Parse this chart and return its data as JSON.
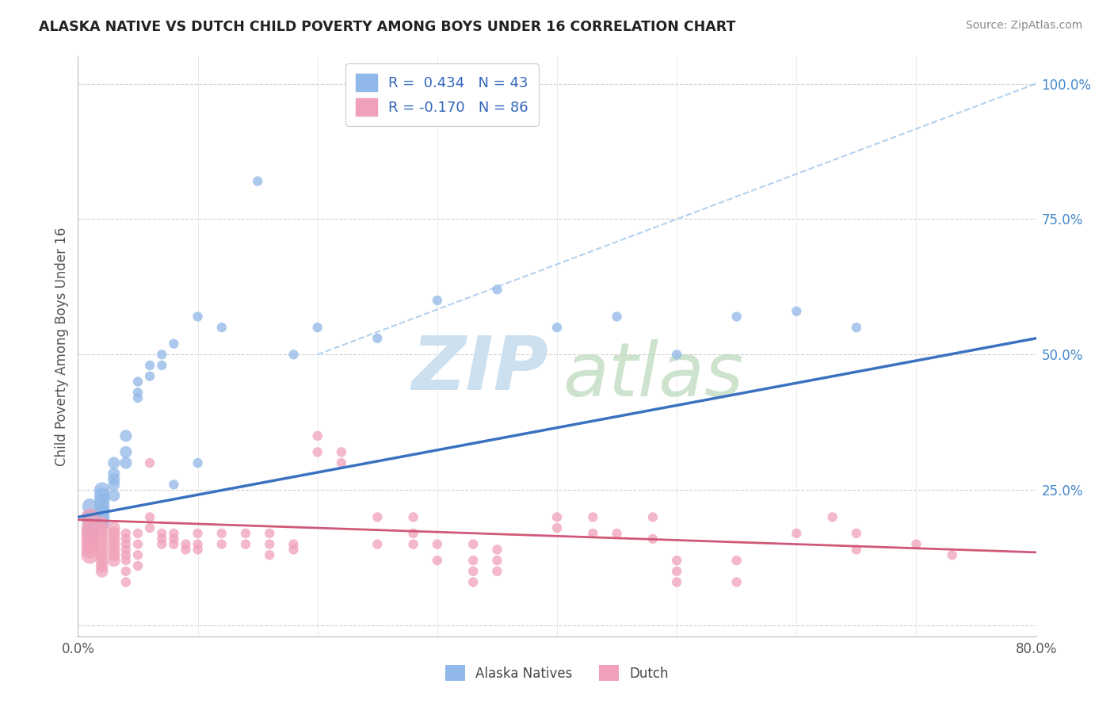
{
  "title": "ALASKA NATIVE VS DUTCH CHILD POVERTY AMONG BOYS UNDER 16 CORRELATION CHART",
  "source": "Source: ZipAtlas.com",
  "ylabel": "Child Poverty Among Boys Under 16",
  "xlim": [
    0.0,
    0.8
  ],
  "ylim": [
    -0.02,
    1.05
  ],
  "legend_label1": "Alaska Natives",
  "legend_label2": "Dutch",
  "alaska_color": "#90b8e8",
  "dutch_color": "#f0a0b8",
  "reg_alaska_color": "#3a72c0",
  "reg_dutch_color": "#d05878",
  "dashed_color": "#aaccee",
  "watermark_zip_color": "#cce0f0",
  "watermark_atlas_color": "#b8d8b8",
  "alaska_R": 0.434,
  "dutch_R": -0.17,
  "alaska_points": [
    [
      0.01,
      0.22
    ],
    [
      0.01,
      0.2
    ],
    [
      0.01,
      0.19
    ],
    [
      0.01,
      0.17
    ],
    [
      0.02,
      0.24
    ],
    [
      0.02,
      0.23
    ],
    [
      0.02,
      0.21
    ],
    [
      0.02,
      0.2
    ],
    [
      0.02,
      0.19
    ],
    [
      0.02,
      0.22
    ],
    [
      0.02,
      0.25
    ],
    [
      0.03,
      0.3
    ],
    [
      0.03,
      0.28
    ],
    [
      0.03,
      0.26
    ],
    [
      0.03,
      0.24
    ],
    [
      0.03,
      0.27
    ],
    [
      0.04,
      0.35
    ],
    [
      0.04,
      0.32
    ],
    [
      0.04,
      0.3
    ],
    [
      0.05,
      0.45
    ],
    [
      0.05,
      0.43
    ],
    [
      0.05,
      0.42
    ],
    [
      0.06,
      0.48
    ],
    [
      0.06,
      0.46
    ],
    [
      0.07,
      0.5
    ],
    [
      0.07,
      0.48
    ],
    [
      0.08,
      0.52
    ],
    [
      0.08,
      0.26
    ],
    [
      0.1,
      0.57
    ],
    [
      0.1,
      0.3
    ],
    [
      0.12,
      0.55
    ],
    [
      0.15,
      0.82
    ],
    [
      0.18,
      0.5
    ],
    [
      0.2,
      0.55
    ],
    [
      0.25,
      0.53
    ],
    [
      0.3,
      0.6
    ],
    [
      0.35,
      0.62
    ],
    [
      0.4,
      0.55
    ],
    [
      0.45,
      0.57
    ],
    [
      0.5,
      0.5
    ],
    [
      0.55,
      0.57
    ],
    [
      0.6,
      0.58
    ],
    [
      0.65,
      0.55
    ]
  ],
  "dutch_points": [
    [
      0.01,
      0.2
    ],
    [
      0.01,
      0.18
    ],
    [
      0.01,
      0.17
    ],
    [
      0.01,
      0.16
    ],
    [
      0.01,
      0.15
    ],
    [
      0.01,
      0.14
    ],
    [
      0.01,
      0.13
    ],
    [
      0.02,
      0.19
    ],
    [
      0.02,
      0.18
    ],
    [
      0.02,
      0.17
    ],
    [
      0.02,
      0.16
    ],
    [
      0.02,
      0.15
    ],
    [
      0.02,
      0.14
    ],
    [
      0.02,
      0.13
    ],
    [
      0.02,
      0.12
    ],
    [
      0.02,
      0.11
    ],
    [
      0.02,
      0.1
    ],
    [
      0.03,
      0.18
    ],
    [
      0.03,
      0.17
    ],
    [
      0.03,
      0.16
    ],
    [
      0.03,
      0.15
    ],
    [
      0.03,
      0.14
    ],
    [
      0.03,
      0.13
    ],
    [
      0.03,
      0.12
    ],
    [
      0.04,
      0.17
    ],
    [
      0.04,
      0.16
    ],
    [
      0.04,
      0.15
    ],
    [
      0.04,
      0.14
    ],
    [
      0.04,
      0.13
    ],
    [
      0.04,
      0.12
    ],
    [
      0.04,
      0.1
    ],
    [
      0.04,
      0.08
    ],
    [
      0.05,
      0.17
    ],
    [
      0.05,
      0.15
    ],
    [
      0.05,
      0.13
    ],
    [
      0.05,
      0.11
    ],
    [
      0.06,
      0.3
    ],
    [
      0.06,
      0.2
    ],
    [
      0.06,
      0.18
    ],
    [
      0.07,
      0.17
    ],
    [
      0.07,
      0.16
    ],
    [
      0.07,
      0.15
    ],
    [
      0.08,
      0.17
    ],
    [
      0.08,
      0.16
    ],
    [
      0.08,
      0.15
    ],
    [
      0.09,
      0.15
    ],
    [
      0.09,
      0.14
    ],
    [
      0.1,
      0.17
    ],
    [
      0.1,
      0.15
    ],
    [
      0.1,
      0.14
    ],
    [
      0.12,
      0.17
    ],
    [
      0.12,
      0.15
    ],
    [
      0.14,
      0.17
    ],
    [
      0.14,
      0.15
    ],
    [
      0.16,
      0.17
    ],
    [
      0.16,
      0.15
    ],
    [
      0.16,
      0.13
    ],
    [
      0.18,
      0.15
    ],
    [
      0.18,
      0.14
    ],
    [
      0.2,
      0.35
    ],
    [
      0.2,
      0.32
    ],
    [
      0.22,
      0.32
    ],
    [
      0.22,
      0.3
    ],
    [
      0.25,
      0.2
    ],
    [
      0.25,
      0.15
    ],
    [
      0.28,
      0.2
    ],
    [
      0.28,
      0.17
    ],
    [
      0.28,
      0.15
    ],
    [
      0.3,
      0.15
    ],
    [
      0.3,
      0.12
    ],
    [
      0.33,
      0.15
    ],
    [
      0.33,
      0.12
    ],
    [
      0.33,
      0.1
    ],
    [
      0.33,
      0.08
    ],
    [
      0.35,
      0.14
    ],
    [
      0.35,
      0.12
    ],
    [
      0.35,
      0.1
    ],
    [
      0.4,
      0.2
    ],
    [
      0.4,
      0.18
    ],
    [
      0.43,
      0.2
    ],
    [
      0.43,
      0.17
    ],
    [
      0.45,
      0.17
    ],
    [
      0.48,
      0.2
    ],
    [
      0.48,
      0.16
    ],
    [
      0.5,
      0.12
    ],
    [
      0.5,
      0.1
    ],
    [
      0.5,
      0.08
    ],
    [
      0.55,
      0.12
    ],
    [
      0.55,
      0.08
    ],
    [
      0.6,
      0.17
    ],
    [
      0.63,
      0.2
    ],
    [
      0.65,
      0.17
    ],
    [
      0.65,
      0.14
    ],
    [
      0.7,
      0.15
    ],
    [
      0.73,
      0.13
    ]
  ],
  "alaska_reg": [
    0.0,
    0.8,
    0.2,
    0.53
  ],
  "dutch_reg": [
    0.0,
    0.8,
    0.2,
    0.14
  ],
  "dashed_line": [
    0.3,
    1.05,
    0.8,
    1.05
  ]
}
